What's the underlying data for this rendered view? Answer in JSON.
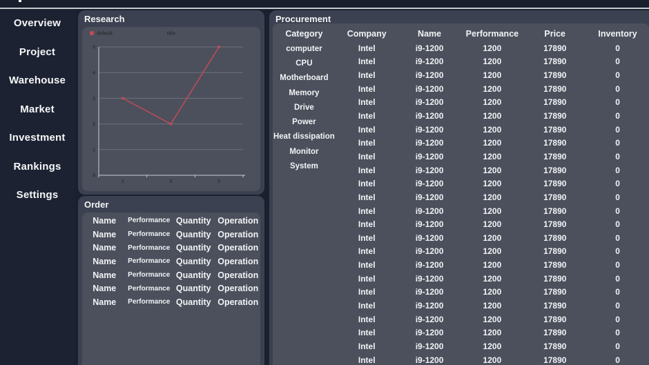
{
  "sidebar": {
    "items": [
      "Overview",
      "Project",
      "Warehouse",
      "Market",
      "Investment",
      "Rankings",
      "Settings"
    ]
  },
  "panels": {
    "research": {
      "title": "Research"
    },
    "order": {
      "title": "Order",
      "columns": [
        "Name",
        "Performance",
        "Quantity",
        "Operation"
      ],
      "row_count": 7
    },
    "procurement": {
      "title": "Procurement",
      "columns": [
        "Category",
        "Company",
        "Name",
        "Performance",
        "Price",
        "Inventory"
      ],
      "categories": [
        "computer",
        "CPU",
        "Motherboard",
        "Memory",
        "Drive",
        "Power",
        "Heat dissipation",
        "Monitor",
        "System"
      ],
      "row": {
        "company": "Intel",
        "name": "i9-1200",
        "performance": "1200",
        "price": "17890",
        "inventory": "0"
      },
      "visible_row_count": 24
    }
  },
  "chart_data": {
    "type": "line",
    "title": "title",
    "legend": [
      "default"
    ],
    "legend_position": "top-left",
    "categories": [
      "1",
      "2",
      "3"
    ],
    "series": [
      {
        "name": "default",
        "values": [
          3,
          2,
          5
        ]
      }
    ],
    "xlabel": "",
    "ylabel": "",
    "ylim": [
      0,
      5
    ],
    "y_ticks": [
      0,
      1,
      2,
      3,
      4,
      5
    ],
    "grid": true,
    "line_color": "#c54a57",
    "text_color": "#2d3036",
    "grid_color": "#6d727c",
    "axis_color": "#cacdd3"
  },
  "colors": {
    "page_bg": "#1a202e",
    "sidebar_bg": "#1c2231",
    "panel_bg": "#3b4150",
    "card_bg": "#4b505c",
    "divider": "#c7cbd2",
    "text": "#f2f3f6"
  }
}
